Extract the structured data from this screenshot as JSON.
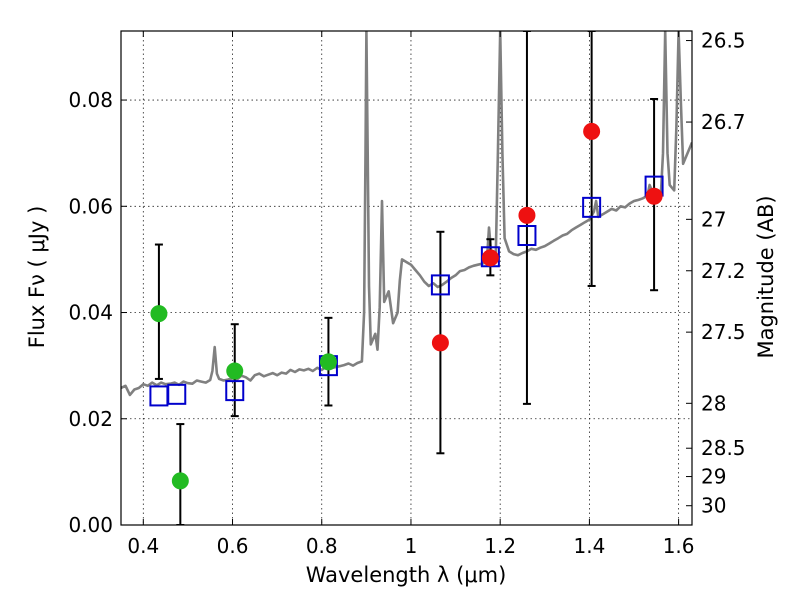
{
  "chart_data": {
    "type": "scatter",
    "xlabel": "Wavelength  λ (μm)",
    "ylabel": "Flux  Fν  ( μJy )",
    "y2label": "Magnitude (AB)",
    "xlim": [
      0.35,
      1.63
    ],
    "ylim": [
      0.0,
      0.093
    ],
    "xticks": [
      0.4,
      0.6,
      0.8,
      1.0,
      1.2,
      1.4,
      1.6
    ],
    "xtick_labels": [
      "0.4",
      "0.6",
      "0.8",
      "1",
      "1.2",
      "1.4",
      "1.6"
    ],
    "yticks": [
      0.0,
      0.02,
      0.04,
      0.06,
      0.08
    ],
    "ytick_labels": [
      "0.00",
      "0.02",
      "0.04",
      "0.06",
      "0.08"
    ],
    "y2ticks": [
      {
        "label": "26.5",
        "mag": 26.5
      },
      {
        "label": "26.7",
        "mag": 26.7
      },
      {
        "label": "27",
        "mag": 27.0
      },
      {
        "label": "27.2",
        "mag": 27.2
      },
      {
        "label": "27.5",
        "mag": 27.5
      },
      {
        "label": "28",
        "mag": 28.0
      },
      {
        "label": "28.5",
        "mag": 28.5
      },
      {
        "label": "29",
        "mag": 29.0
      },
      {
        "label": "30",
        "mag": 30.0
      }
    ],
    "grid": true,
    "colors": {
      "model": "#808080",
      "green": "#22bb22",
      "red": "#ee1111",
      "square": "#0000cc",
      "errorbar": "#000000"
    },
    "model_spectrum": [
      [
        0.35,
        0.0258
      ],
      [
        0.36,
        0.0262
      ],
      [
        0.37,
        0.0245
      ],
      [
        0.38,
        0.0255
      ],
      [
        0.39,
        0.0258
      ],
      [
        0.4,
        0.0265
      ],
      [
        0.41,
        0.0262
      ],
      [
        0.42,
        0.0268
      ],
      [
        0.43,
        0.0263
      ],
      [
        0.44,
        0.0268
      ],
      [
        0.45,
        0.0265
      ],
      [
        0.46,
        0.0266
      ],
      [
        0.47,
        0.0268
      ],
      [
        0.48,
        0.0264
      ],
      [
        0.49,
        0.027
      ],
      [
        0.5,
        0.0267
      ],
      [
        0.51,
        0.0266
      ],
      [
        0.52,
        0.0272
      ],
      [
        0.53,
        0.027
      ],
      [
        0.54,
        0.0268
      ],
      [
        0.55,
        0.0273
      ],
      [
        0.555,
        0.029
      ],
      [
        0.56,
        0.0335
      ],
      [
        0.565,
        0.0285
      ],
      [
        0.57,
        0.0275
      ],
      [
        0.58,
        0.0272
      ],
      [
        0.59,
        0.0274
      ],
      [
        0.6,
        0.0276
      ],
      [
        0.61,
        0.0274
      ],
      [
        0.62,
        0.0281
      ],
      [
        0.63,
        0.0278
      ],
      [
        0.64,
        0.0272
      ],
      [
        0.65,
        0.0282
      ],
      [
        0.66,
        0.0285
      ],
      [
        0.67,
        0.028
      ],
      [
        0.68,
        0.0283
      ],
      [
        0.69,
        0.0286
      ],
      [
        0.7,
        0.0282
      ],
      [
        0.71,
        0.0287
      ],
      [
        0.72,
        0.0285
      ],
      [
        0.73,
        0.0292
      ],
      [
        0.74,
        0.0288
      ],
      [
        0.75,
        0.0293
      ],
      [
        0.76,
        0.0291
      ],
      [
        0.77,
        0.0294
      ],
      [
        0.78,
        0.029
      ],
      [
        0.79,
        0.0296
      ],
      [
        0.8,
        0.0292
      ],
      [
        0.81,
        0.0298
      ],
      [
        0.82,
        0.0295
      ],
      [
        0.83,
        0.0297
      ],
      [
        0.84,
        0.0299
      ],
      [
        0.85,
        0.0301
      ],
      [
        0.86,
        0.0304
      ],
      [
        0.87,
        0.03
      ],
      [
        0.88,
        0.0305
      ],
      [
        0.89,
        0.0308
      ],
      [
        0.895,
        0.04
      ],
      [
        0.898,
        0.07
      ],
      [
        0.9,
        0.093
      ],
      [
        0.903,
        0.07
      ],
      [
        0.906,
        0.045
      ],
      [
        0.91,
        0.034
      ],
      [
        0.92,
        0.036
      ],
      [
        0.925,
        0.033
      ],
      [
        0.93,
        0.041
      ],
      [
        0.935,
        0.061
      ],
      [
        0.94,
        0.042
      ],
      [
        0.95,
        0.044
      ],
      [
        0.96,
        0.038
      ],
      [
        0.97,
        0.04
      ],
      [
        0.975,
        0.046
      ],
      [
        0.98,
        0.05
      ],
      [
        0.99,
        0.0495
      ],
      [
        1.0,
        0.049
      ],
      [
        1.01,
        0.048
      ],
      [
        1.02,
        0.047
      ],
      [
        1.03,
        0.0458
      ],
      [
        1.04,
        0.045
      ],
      [
        1.05,
        0.0455
      ],
      [
        1.06,
        0.0448
      ],
      [
        1.07,
        0.0452
      ],
      [
        1.08,
        0.0458
      ],
      [
        1.09,
        0.0465
      ],
      [
        1.1,
        0.047
      ],
      [
        1.11,
        0.0478
      ],
      [
        1.12,
        0.048
      ],
      [
        1.13,
        0.0485
      ],
      [
        1.14,
        0.0488
      ],
      [
        1.15,
        0.049
      ],
      [
        1.16,
        0.0492
      ],
      [
        1.17,
        0.0495
      ],
      [
        1.175,
        0.056
      ],
      [
        1.18,
        0.051
      ],
      [
        1.19,
        0.05
      ],
      [
        1.195,
        0.07
      ],
      [
        1.2,
        0.093
      ],
      [
        1.205,
        0.07
      ],
      [
        1.21,
        0.054
      ],
      [
        1.22,
        0.0515
      ],
      [
        1.23,
        0.051
      ],
      [
        1.24,
        0.0508
      ],
      [
        1.25,
        0.0512
      ],
      [
        1.26,
        0.0515
      ],
      [
        1.27,
        0.052
      ],
      [
        1.28,
        0.0518
      ],
      [
        1.29,
        0.0522
      ],
      [
        1.3,
        0.0525
      ],
      [
        1.31,
        0.053
      ],
      [
        1.32,
        0.0535
      ],
      [
        1.33,
        0.054
      ],
      [
        1.34,
        0.0545
      ],
      [
        1.35,
        0.0548
      ],
      [
        1.36,
        0.0555
      ],
      [
        1.37,
        0.056
      ],
      [
        1.38,
        0.0565
      ],
      [
        1.39,
        0.057
      ],
      [
        1.4,
        0.0575
      ],
      [
        1.41,
        0.059
      ],
      [
        1.415,
        0.061
      ],
      [
        1.42,
        0.058
      ],
      [
        1.43,
        0.0585
      ],
      [
        1.44,
        0.059
      ],
      [
        1.45,
        0.0595
      ],
      [
        1.46,
        0.0592
      ],
      [
        1.47,
        0.06
      ],
      [
        1.48,
        0.0598
      ],
      [
        1.49,
        0.0605
      ],
      [
        1.5,
        0.061
      ],
      [
        1.51,
        0.0612
      ],
      [
        1.52,
        0.0615
      ],
      [
        1.53,
        0.062
      ],
      [
        1.535,
        0.064
      ],
      [
        1.54,
        0.063
      ],
      [
        1.55,
        0.0625
      ],
      [
        1.56,
        0.062
      ],
      [
        1.565,
        0.07
      ],
      [
        1.57,
        0.093
      ],
      [
        1.575,
        0.07
      ],
      [
        1.58,
        0.064
      ],
      [
        1.59,
        0.063
      ],
      [
        1.595,
        0.075
      ],
      [
        1.6,
        0.093
      ],
      [
        1.605,
        0.08
      ],
      [
        1.61,
        0.068
      ],
      [
        1.62,
        0.07
      ],
      [
        1.63,
        0.072
      ]
    ],
    "series": [
      {
        "name": "green points",
        "marker": "circle",
        "points": [
          {
            "x": 0.435,
            "y": 0.0398,
            "err_low": 0.0275,
            "err_high": 0.0528
          },
          {
            "x": 0.483,
            "y": 0.0083,
            "err_low": 0.0,
            "err_high": 0.019
          },
          {
            "x": 0.605,
            "y": 0.029,
            "err_low": 0.0205,
            "err_high": 0.0378
          },
          {
            "x": 0.815,
            "y": 0.0307,
            "err_low": 0.0225,
            "err_high": 0.039
          }
        ]
      },
      {
        "name": "red points",
        "marker": "circle",
        "points": [
          {
            "x": 1.066,
            "y": 0.0343,
            "err_low": 0.0135,
            "err_high": 0.0552
          },
          {
            "x": 1.178,
            "y": 0.0503,
            "err_low": 0.047,
            "err_high": 0.0538
          },
          {
            "x": 1.26,
            "y": 0.0583,
            "err_low": 0.0228,
            "err_high": 0.093
          },
          {
            "x": 1.405,
            "y": 0.0741,
            "err_low": 0.045,
            "err_high": 0.093
          },
          {
            "x": 1.545,
            "y": 0.0619,
            "err_low": 0.0442,
            "err_high": 0.0802
          }
        ]
      },
      {
        "name": "model photometry",
        "marker": "square",
        "points": [
          {
            "x": 0.435,
            "y": 0.0243
          },
          {
            "x": 0.475,
            "y": 0.0246
          },
          {
            "x": 0.605,
            "y": 0.0253
          },
          {
            "x": 0.815,
            "y": 0.03
          },
          {
            "x": 1.066,
            "y": 0.0452
          },
          {
            "x": 1.178,
            "y": 0.0505
          },
          {
            "x": 1.26,
            "y": 0.0545
          },
          {
            "x": 1.405,
            "y": 0.0598
          },
          {
            "x": 1.545,
            "y": 0.0638
          }
        ]
      }
    ]
  }
}
